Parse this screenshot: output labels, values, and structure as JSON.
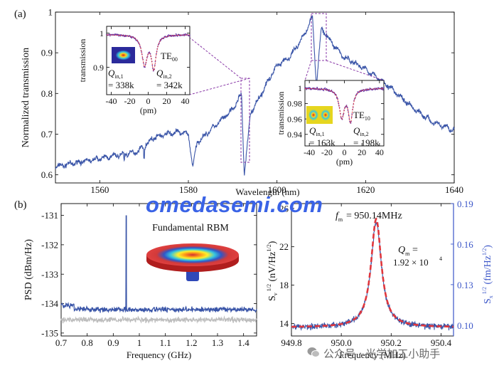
{
  "figure": {
    "panel_a_label": "(a)",
    "panel_b_label": "(b)",
    "watermark": "omedasemi.com",
    "credit_text": "公众号 · 光学加工小助手"
  },
  "colors": {
    "blue": "#3a55a8",
    "red": "#e0363c",
    "gray": "#bdbdbd",
    "purple": "#8a3aa8",
    "axis_right": "#3a55c8"
  },
  "chart_data": [
    {
      "id": "a_main",
      "type": "line",
      "xlabel": "Wavelength (nm)",
      "ylabel": "Normalized transmission",
      "xlim": [
        1550,
        1640
      ],
      "ylim": [
        0.58,
        1.0
      ],
      "xticks": [
        1560,
        1580,
        1600,
        1620,
        1640
      ],
      "yticks": [
        0.6,
        0.7,
        0.8,
        0.9,
        1.0
      ],
      "ytick_labels": [
        "0.6",
        "0.7",
        "0.8",
        "0.9",
        "1"
      ],
      "series": [
        {
          "name": "transmission",
          "x": [
            1550,
            1555,
            1560,
            1565,
            1568,
            1570,
            1572,
            1575,
            1578,
            1580,
            1581,
            1582,
            1585,
            1590,
            1592,
            1592.6,
            1593.2,
            1594,
            1597,
            1600,
            1603,
            1606,
            1608,
            1608.9,
            1610,
            1612,
            1615,
            1620,
            1625,
            1630,
            1635,
            1640
          ],
          "y": [
            0.62,
            0.63,
            0.64,
            0.65,
            0.655,
            0.67,
            0.69,
            0.7,
            0.705,
            0.7,
            0.62,
            0.68,
            0.71,
            0.76,
            0.8,
            0.6,
            0.66,
            0.75,
            0.81,
            0.87,
            0.89,
            0.94,
            0.99,
            0.82,
            0.96,
            0.93,
            0.89,
            0.86,
            0.82,
            0.77,
            0.73,
            0.71
          ]
        }
      ]
    },
    {
      "id": "a_inset_te00",
      "type": "line",
      "xlabel": "(pm)",
      "ylabel": "transmission",
      "xlim": [
        -45,
        45
      ],
      "ylim": [
        0.82,
        1.02
      ],
      "xticks": [
        -40,
        -20,
        0,
        20,
        40
      ],
      "yticks": [
        0.9,
        1.0
      ],
      "ytick_labels": [
        "0.9",
        "1"
      ],
      "mode": "TE",
      "mode_sub": "00",
      "q1_label": "Q",
      "q1_sub": "in,1",
      "q1_value": "= 338k",
      "q2_label": "Q",
      "q2_sub": "in,2",
      "q2_value": "= 342k",
      "resonances_pm": [
        -4,
        6
      ]
    },
    {
      "id": "a_inset_te10",
      "type": "line",
      "xlabel": "(pm)",
      "ylabel": "transmission",
      "xlim": [
        -45,
        45
      ],
      "ylim": [
        0.925,
        1.01
      ],
      "xticks": [
        -40,
        -20,
        0,
        20,
        40
      ],
      "yticks": [
        0.94,
        0.96,
        0.98,
        1.0
      ],
      "ytick_labels": [
        "0.94",
        "0.96",
        "0.98",
        "1"
      ],
      "mode": "TE",
      "mode_sub": "10",
      "q1_label": "Q",
      "q1_sub": "in,1",
      "q1_value": "= 163k",
      "q2_label": "Q",
      "q2_sub": "in,2",
      "q2_value": "= 198k",
      "resonances_pm": [
        -3,
        7
      ]
    },
    {
      "id": "b_psd",
      "type": "line",
      "xlabel": "Frequency (GHz)",
      "ylabel": "PSD (dBm/Hz)",
      "xlim": [
        0.7,
        1.45
      ],
      "ylim": [
        -135.1,
        -130.6
      ],
      "xticks": [
        0.7,
        0.8,
        0.9,
        1.0,
        1.1,
        1.2,
        1.3,
        1.4
      ],
      "xtick_labels": [
        "0.7",
        "0.8",
        "0.9",
        "1",
        "1.1",
        "1.2",
        "1.3",
        "1.4"
      ],
      "yticks": [
        -135,
        -134,
        -133,
        -132,
        -131
      ],
      "annotation": "Fundamental RBM",
      "series": [
        {
          "name": "signal",
          "baseline": -134.2,
          "peak_x": 0.95,
          "peak_y": -131.0
        },
        {
          "name": "background",
          "baseline": -134.55
        }
      ]
    },
    {
      "id": "b_lorentz",
      "type": "line",
      "xlabel": "Frequency (MHz)",
      "ylabel": "S_v^1/2 (nV/Hz^1/2)",
      "ylabel_right": "S_x^1/2 (fm/Hz^1/2)",
      "xlim": [
        949.8,
        950.45
      ],
      "ylim": [
        12.7,
        26.5
      ],
      "ylim_right": [
        0.092,
        0.19
      ],
      "xticks": [
        949.8,
        950.0,
        950.2,
        950.4
      ],
      "xtick_labels": [
        "949.8",
        "950.0",
        "950.2",
        "950.4"
      ],
      "yticks": [
        14,
        18,
        22,
        26
      ],
      "yticks_right": [
        0.1,
        0.13,
        0.16,
        0.19
      ],
      "ytick_labels_right": [
        "0.10",
        "0.13",
        "0.16",
        "0.19"
      ],
      "fm_label": "f",
      "fm_sub": "m",
      "fm_value": "= 950.14MHz",
      "qm_label": "Q",
      "qm_sub": "m",
      "qm_value": "=",
      "qm_number": "1.92 × 10",
      "qm_exp": "4",
      "series": [
        {
          "name": "measured",
          "center": 950.14,
          "peak": 24.6,
          "base": 13.6,
          "fwhm": 0.05
        },
        {
          "name": "lorentzian fit",
          "center": 950.14,
          "peak": 24.9,
          "base": 13.6,
          "fwhm": 0.05
        }
      ]
    }
  ]
}
